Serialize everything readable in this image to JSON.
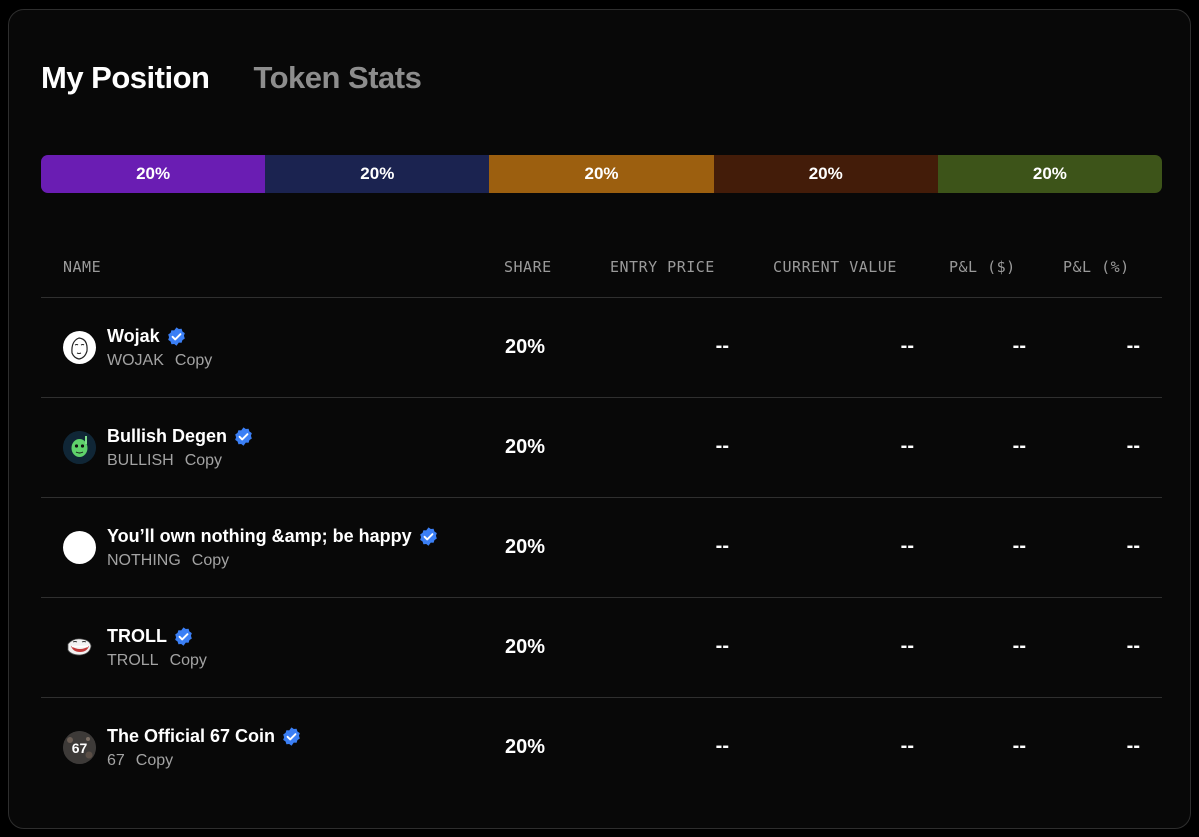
{
  "tabs": [
    {
      "label": "My Position",
      "active": true
    },
    {
      "label": "Token Stats",
      "active": false
    }
  ],
  "allocation": [
    {
      "label": "20%",
      "share": 0.2,
      "color": "#6a1db3"
    },
    {
      "label": "20%",
      "share": 0.2,
      "color": "#1b2350"
    },
    {
      "label": "20%",
      "share": 0.2,
      "color": "#9c5f0f"
    },
    {
      "label": "20%",
      "share": 0.2,
      "color": "#431c09"
    },
    {
      "label": "20%",
      "share": 0.2,
      "color": "#3d5419"
    }
  ],
  "table": {
    "headers": {
      "name": "NAME",
      "share": "SHARE",
      "entry_price": "ENTRY PRICE",
      "current_value": "CURRENT VALUE",
      "pnl_usd": "P&L ($)",
      "pnl_pct": "P&L (%)"
    },
    "copy_label": "Copy",
    "rows": [
      {
        "name": "Wojak",
        "symbol": "WOJAK",
        "share": "20%",
        "entry_price": "--",
        "current_value": "--",
        "pnl_usd": "--",
        "pnl_pct": "--",
        "avatar_icon": "wojak-face-icon"
      },
      {
        "name": "Bullish Degen",
        "symbol": "BULLISH",
        "share": "20%",
        "entry_price": "--",
        "current_value": "--",
        "pnl_usd": "--",
        "pnl_pct": "--",
        "avatar_icon": "green-alien-icon"
      },
      {
        "name": "You’ll own nothing &amp; be happy",
        "symbol": "NOTHING",
        "share": "20%",
        "entry_price": "--",
        "current_value": "--",
        "pnl_usd": "--",
        "pnl_pct": "--",
        "avatar_icon": "white-circle-icon"
      },
      {
        "name": "TROLL",
        "symbol": "TROLL",
        "share": "20%",
        "entry_price": "--",
        "current_value": "--",
        "pnl_usd": "--",
        "pnl_pct": "--",
        "avatar_icon": "troll-face-icon"
      },
      {
        "name": "The Official 67 Coin",
        "symbol": "67",
        "share": "20%",
        "entry_price": "--",
        "current_value": "--",
        "pnl_usd": "--",
        "pnl_pct": "--",
        "avatar_icon": "sixty-seven-icon",
        "avatar_text": "67"
      }
    ]
  },
  "colors": {
    "verified_badge": "#3b7ff5",
    "panel_bg": "#080808",
    "muted_text": "#a3a3a3"
  }
}
